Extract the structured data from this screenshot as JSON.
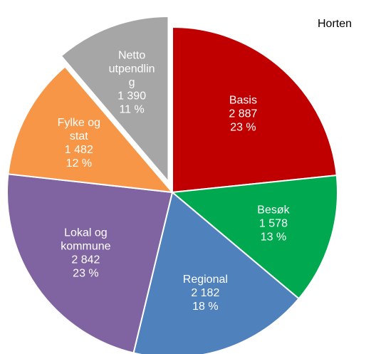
{
  "chart_data": {
    "type": "pie",
    "title": "Horten",
    "categories": [
      "Basis",
      "Besøk",
      "Regional",
      "Lokal og kommune",
      "Fylke og stat",
      "Netto utpendling"
    ],
    "values": [
      2887,
      1578,
      2182,
      2842,
      1482,
      1390
    ],
    "value_labels": [
      "2 887",
      "1 578",
      "2 182",
      "2 842",
      "1 482",
      "1 390"
    ],
    "percent_labels": [
      "23 %",
      "13 %",
      "18 %",
      "23 %",
      "12 %",
      "11 %"
    ],
    "colors": [
      "#c00000",
      "#00a94f",
      "#4f81bd",
      "#8064a2",
      "#f79646",
      "#a6a6a6"
    ],
    "exploded": [
      5
    ]
  }
}
